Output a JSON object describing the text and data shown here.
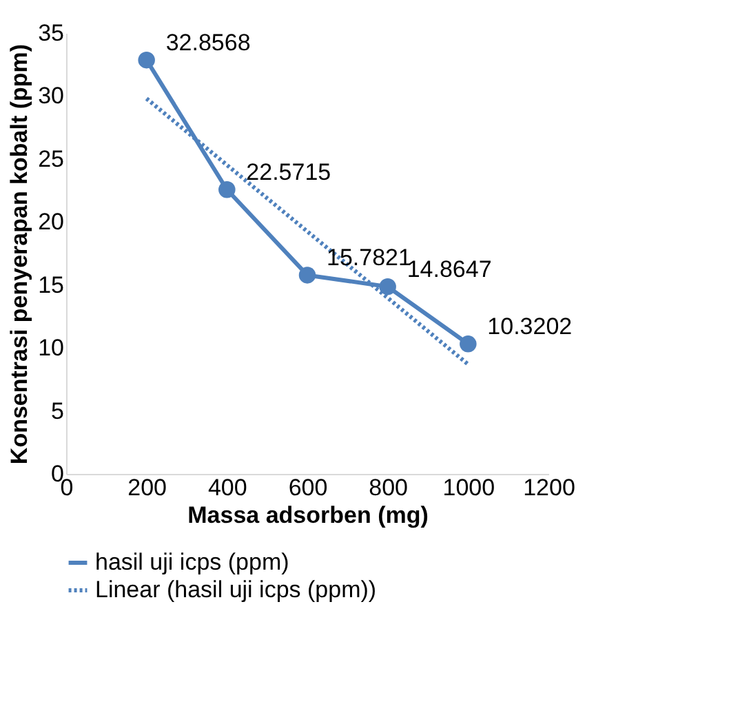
{
  "chart_data": {
    "type": "line",
    "xlabel": "Massa adsorben (mg)",
    "ylabel": "Konsentrasi penyerapan kobalt (ppm)",
    "xlim": [
      0,
      1200
    ],
    "xticks": [
      0,
      200,
      400,
      600,
      800,
      1000,
      1200
    ],
    "ylim": [
      0,
      35
    ],
    "yticks": [
      0,
      5,
      10,
      15,
      20,
      25,
      30,
      35
    ],
    "grid": false,
    "legend": "bottom",
    "series": [
      {
        "name": "hasil uji icps (ppm)",
        "color": "#4f81bd",
        "x": [
          200,
          400,
          600,
          800,
          1000
        ],
        "values": [
          32.8568,
          22.5715,
          15.7821,
          14.8647,
          10.3202
        ],
        "value_labels": [
          "32.8568",
          "22.5715",
          "15.7821",
          "14.8647",
          "10.3202"
        ],
        "marker": "circle",
        "line_style": "solid"
      },
      {
        "name": "Linear (hasil uji icps (ppm))",
        "color": "#4f81bd",
        "x": [
          200,
          1000
        ],
        "values": [
          29.8,
          8.7
        ],
        "marker": "none",
        "line_style": "dotted"
      }
    ]
  }
}
